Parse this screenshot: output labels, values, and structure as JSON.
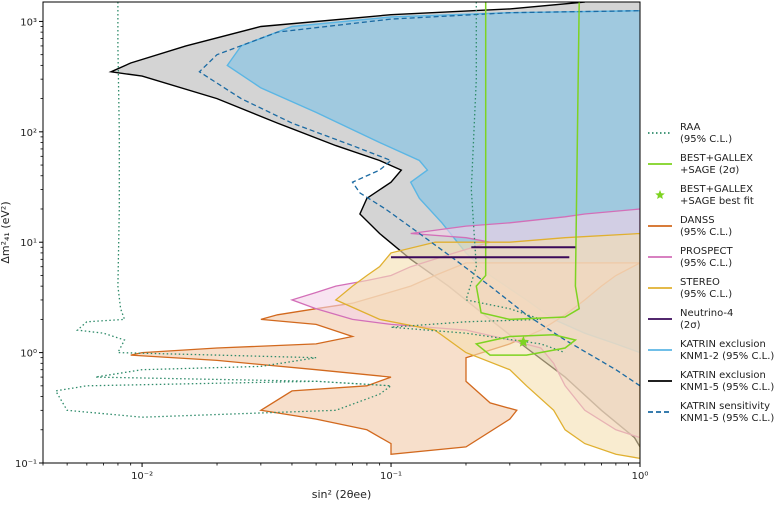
{
  "chart_data": {
    "type": "area",
    "xscale": "log",
    "yscale": "log",
    "xlim": [
      0.004,
      1
    ],
    "ylim": [
      0.1,
      1500
    ],
    "xlabel": "sin² (2θee)",
    "ylabel": "Δm²₄₁ (eV²)",
    "x_ticks": [
      "10⁻²",
      "10⁻¹",
      "10⁰"
    ],
    "y_ticks": [
      "10⁻¹",
      "10⁰",
      "10¹",
      "10²",
      "10³"
    ],
    "legend_position": "right",
    "series": [
      {
        "name": "RAA\n(95% C.L.)",
        "style": "dotted",
        "color": "#2e8b6a",
        "points": [
          [
            0.008,
            1500
          ],
          [
            0.008,
            600
          ],
          [
            0.0081,
            100
          ],
          [
            0.0081,
            20
          ],
          [
            0.008,
            4
          ],
          [
            0.0082,
            2.5
          ],
          [
            0.0085,
            2
          ],
          [
            0.006,
            1.9
          ],
          [
            0.0055,
            1.6
          ],
          [
            0.007,
            1.5
          ],
          [
            0.0085,
            1.3
          ],
          [
            0.008,
            1.0
          ],
          [
            0.02,
            0.95
          ],
          [
            0.05,
            0.9
          ],
          [
            0.03,
            0.75
          ],
          [
            0.01,
            0.7
          ],
          [
            0.0065,
            0.6
          ],
          [
            0.05,
            0.55
          ],
          [
            0.1,
            0.5
          ],
          [
            0.09,
            0.42
          ],
          [
            0.06,
            0.3
          ],
          [
            0.01,
            0.26
          ],
          [
            0.005,
            0.3
          ],
          [
            0.0045,
            0.45
          ],
          [
            0.006,
            0.5
          ],
          [
            0.05,
            0.55
          ],
          [
            0.1,
            0.5
          ]
        ],
        "points2": [
          [
            0.22,
            1500
          ],
          [
            0.22,
            300
          ],
          [
            0.21,
            30
          ],
          [
            0.22,
            6
          ],
          [
            0.2,
            3
          ],
          [
            0.3,
            2.5
          ],
          [
            0.4,
            2
          ],
          [
            0.2,
            1.9
          ],
          [
            0.1,
            1.7
          ],
          [
            0.2,
            1.5
          ],
          [
            0.4,
            1.2
          ],
          [
            0.5,
            1.0
          ]
        ]
      },
      {
        "name": "BEST+GALLEX\n+SAGE (2σ)",
        "style": "solid",
        "color": "#7ed321",
        "points": [
          [
            0.24,
            1500
          ],
          [
            0.24,
            10
          ],
          [
            0.24,
            5
          ],
          [
            0.22,
            4
          ],
          [
            0.23,
            2.3
          ],
          [
            0.3,
            2
          ],
          [
            0.5,
            2.1
          ],
          [
            0.57,
            2.5
          ],
          [
            0.55,
            4
          ],
          [
            0.57,
            1500
          ]
        ],
        "points2": [
          [
            0.3,
            1.4
          ],
          [
            0.22,
            1.2
          ],
          [
            0.25,
            0.95
          ],
          [
            0.35,
            0.95
          ],
          [
            0.5,
            1.1
          ],
          [
            0.55,
            1.3
          ],
          [
            0.45,
            1.45
          ],
          [
            0.3,
            1.4
          ]
        ]
      },
      {
        "name": "BEST+GALLEX\n+SAGE best fit",
        "style": "marker",
        "color": "#7ed321",
        "points": [
          [
            0.34,
            1.25
          ]
        ]
      },
      {
        "name": "DANSS\n(95% C.L.)",
        "style": "filled",
        "color": "#d2691e",
        "fill": "#f2c9a8",
        "points": [
          [
            0.2,
            6.5
          ],
          [
            0.15,
            5
          ],
          [
            0.12,
            4
          ],
          [
            0.09,
            3.3
          ],
          [
            0.07,
            2.8
          ],
          [
            0.05,
            2.5
          ],
          [
            0.035,
            2.2
          ],
          [
            0.03,
            2.0
          ],
          [
            0.05,
            1.8
          ],
          [
            0.07,
            1.4
          ],
          [
            0.05,
            1.2
          ],
          [
            0.02,
            1.1
          ],
          [
            0.01,
            1.0
          ],
          [
            0.009,
            0.95
          ],
          [
            0.02,
            0.85
          ],
          [
            0.05,
            0.7
          ],
          [
            0.1,
            0.6
          ],
          [
            0.08,
            0.5
          ],
          [
            0.04,
            0.45
          ],
          [
            0.03,
            0.3
          ],
          [
            0.05,
            0.25
          ],
          [
            0.08,
            0.2
          ],
          [
            0.1,
            0.15
          ],
          [
            0.1,
            0.12
          ],
          [
            0.2,
            0.14
          ],
          [
            0.3,
            0.25
          ],
          [
            0.32,
            0.3
          ],
          [
            0.25,
            0.35
          ],
          [
            0.2,
            0.55
          ],
          [
            0.2,
            0.9
          ],
          [
            0.3,
            1.2
          ],
          [
            0.4,
            1.6
          ],
          [
            0.5,
            2.2
          ],
          [
            0.6,
            3.0
          ],
          [
            0.7,
            4
          ],
          [
            0.8,
            5
          ],
          [
            1,
            6.5
          ]
        ]
      },
      {
        "name": "PROSPECT\n(95% C.L.)",
        "style": "filled",
        "color": "#d36fb8",
        "fill": "#f3d2e8",
        "points": [
          [
            0.12,
            12
          ],
          [
            0.2,
            11
          ],
          [
            0.25,
            10
          ],
          [
            0.18,
            8
          ],
          [
            0.12,
            6
          ],
          [
            0.1,
            5
          ],
          [
            0.08,
            4.5
          ],
          [
            0.06,
            4
          ],
          [
            0.05,
            3.5
          ],
          [
            0.04,
            3
          ],
          [
            0.05,
            2.5
          ],
          [
            0.07,
            2
          ],
          [
            0.1,
            1.8
          ],
          [
            0.2,
            1.6
          ],
          [
            0.3,
            1.3
          ],
          [
            0.4,
            1.1
          ],
          [
            0.45,
            0.8
          ],
          [
            0.5,
            0.5
          ],
          [
            0.6,
            0.3
          ],
          [
            0.8,
            0.2
          ],
          [
            1,
            0.17
          ],
          [
            1,
            20
          ],
          [
            0.6,
            18
          ],
          [
            0.5,
            17
          ],
          [
            0.3,
            15
          ],
          [
            0.2,
            14
          ],
          [
            0.12,
            12
          ]
        ]
      },
      {
        "name": "STEREO\n(95% C.L.)",
        "style": "filled",
        "color": "#e0b030",
        "fill": "#f5dfb0",
        "points": [
          [
            0.15,
            10
          ],
          [
            0.1,
            8
          ],
          [
            0.09,
            6
          ],
          [
            0.08,
            5
          ],
          [
            0.07,
            4
          ],
          [
            0.06,
            3
          ],
          [
            0.09,
            2
          ],
          [
            0.15,
            1.6
          ],
          [
            0.2,
            1.0
          ],
          [
            0.3,
            0.7
          ],
          [
            0.35,
            0.5
          ],
          [
            0.45,
            0.3
          ],
          [
            0.5,
            0.2
          ],
          [
            0.6,
            0.15
          ],
          [
            0.8,
            0.12
          ],
          [
            1,
            0.11
          ],
          [
            1,
            12
          ],
          [
            0.5,
            11
          ],
          [
            0.3,
            10
          ],
          [
            0.15,
            10
          ]
        ]
      },
      {
        "name": "Neutrino-4\n(2σ)",
        "style": "solid",
        "color": "#3a0a5a",
        "points": [
          [
            0.21,
            9.0
          ],
          [
            0.55,
            9.0
          ]
        ],
        "points2": [
          [
            0.1,
            7.3
          ],
          [
            0.52,
            7.3
          ]
        ]
      },
      {
        "name": "KATRIN exclusion\nKNM1-2 (95% C.L.)",
        "style": "filled",
        "color": "#5bb6e4",
        "fill": "#8fc6e3",
        "points": [
          [
            1,
            1.0
          ],
          [
            0.8,
            1.2
          ],
          [
            0.6,
            1.5
          ],
          [
            0.45,
            2
          ],
          [
            0.35,
            3
          ],
          [
            0.25,
            5
          ],
          [
            0.2,
            8
          ],
          [
            0.16,
            15
          ],
          [
            0.13,
            25
          ],
          [
            0.12,
            35
          ],
          [
            0.14,
            45
          ],
          [
            0.13,
            55
          ],
          [
            0.09,
            80
          ],
          [
            0.05,
            150
          ],
          [
            0.03,
            250
          ],
          [
            0.022,
            400
          ],
          [
            0.025,
            600
          ],
          [
            0.04,
            900
          ],
          [
            0.1,
            1100
          ],
          [
            0.3,
            1200
          ],
          [
            1,
            1250
          ]
        ]
      },
      {
        "name": "KATRIN exclusion\nKNM1-5 (95% C.L.)",
        "style": "filled",
        "color": "#000000",
        "fill": "#c6c6c6",
        "points": [
          [
            1,
            0.14
          ],
          [
            0.95,
            0.17
          ],
          [
            0.7,
            0.3
          ],
          [
            0.5,
            0.6
          ],
          [
            0.35,
            1.1
          ],
          [
            0.25,
            2
          ],
          [
            0.17,
            4
          ],
          [
            0.12,
            7
          ],
          [
            0.09,
            12
          ],
          [
            0.075,
            18
          ],
          [
            0.08,
            25
          ],
          [
            0.1,
            35
          ],
          [
            0.11,
            45
          ],
          [
            0.09,
            55
          ],
          [
            0.06,
            75
          ],
          [
            0.035,
            120
          ],
          [
            0.02,
            200
          ],
          [
            0.01,
            320
          ],
          [
            0.0075,
            350
          ],
          [
            0.009,
            420
          ],
          [
            0.015,
            600
          ],
          [
            0.03,
            900
          ],
          [
            0.1,
            1150
          ],
          [
            0.3,
            1300
          ],
          [
            0.6,
            1500
          ]
        ]
      },
      {
        "name": "KATRIN sensitivity\nKNM1-5 (95% C.L.)",
        "style": "dashed",
        "color": "#1c6ba3",
        "points": [
          [
            1,
            0.5
          ],
          [
            0.8,
            0.7
          ],
          [
            0.5,
            1.3
          ],
          [
            0.35,
            2.2
          ],
          [
            0.25,
            4
          ],
          [
            0.18,
            7
          ],
          [
            0.13,
            12
          ],
          [
            0.095,
            20
          ],
          [
            0.075,
            28
          ],
          [
            0.07,
            35
          ],
          [
            0.09,
            45
          ],
          [
            0.1,
            55
          ],
          [
            0.07,
            75
          ],
          [
            0.04,
            120
          ],
          [
            0.025,
            200
          ],
          [
            0.017,
            350
          ],
          [
            0.02,
            500
          ],
          [
            0.035,
            800
          ],
          [
            0.1,
            1050
          ],
          [
            0.3,
            1200
          ],
          [
            1,
            1250
          ]
        ]
      }
    ]
  }
}
